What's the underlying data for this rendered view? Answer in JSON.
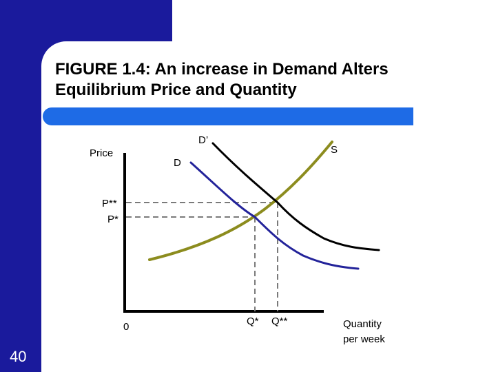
{
  "slide": {
    "title_line1": "FIGURE 1.4: An increase in Demand Alters",
    "title_line2": "Equilibrium Price and Quantity",
    "page_number": "40"
  },
  "colors": {
    "brand_blue": "#1a1a9c",
    "title_bar_blue": "#1e6be6",
    "supply_curve": "#8c8c1e",
    "demand_curve": "#23239a",
    "new_demand_curve": "#000000",
    "guide_lines": "#7a7a7a"
  },
  "diagram": {
    "y_axis_label": "Price",
    "x_axis_label_line1": "Quantity",
    "x_axis_label_line2": "per week",
    "origin_label": "0",
    "supply_label": "S",
    "demand_label": "D",
    "new_demand_label": "D’",
    "p_new_label": "P**",
    "p_old_label": "P*",
    "q_old_label": "Q*",
    "q_new_label": "Q**"
  }
}
